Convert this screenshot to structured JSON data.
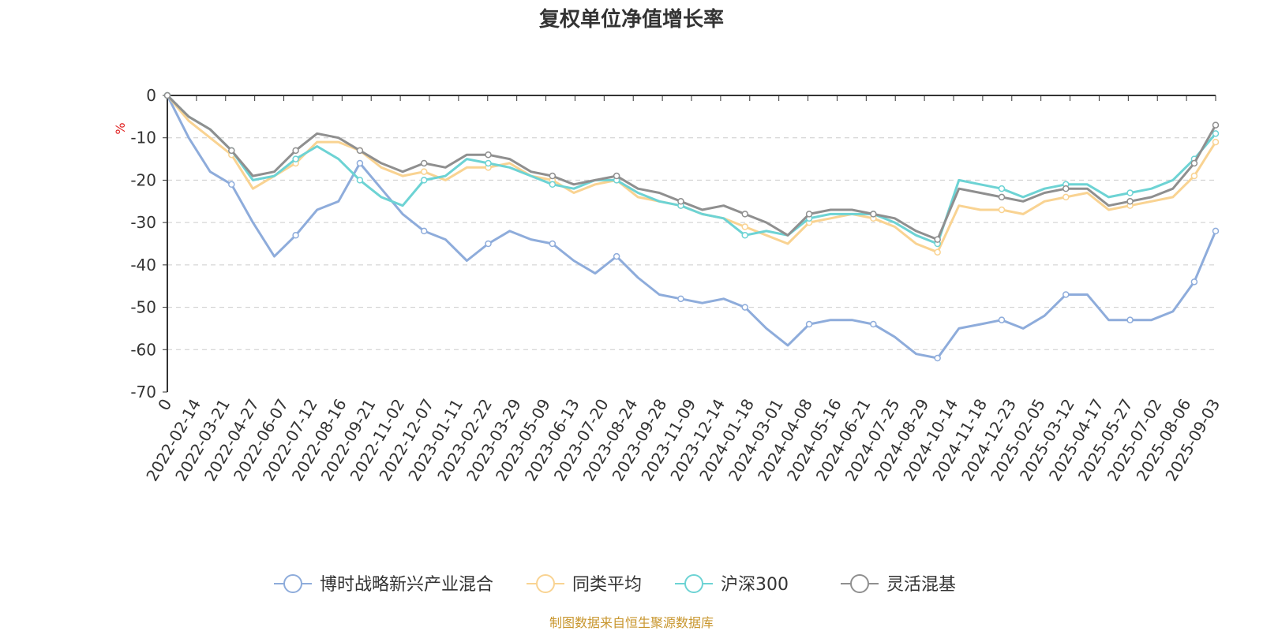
{
  "footer": "制图数据来自恒生聚源数据库",
  "chart_data": {
    "type": "line",
    "title": "复权单位净值增长率",
    "ylabel": "%",
    "ylim": [
      -70,
      0
    ],
    "y_ticks": [
      0,
      -10,
      -20,
      -30,
      -40,
      -50,
      -60,
      -70
    ],
    "grid": true,
    "legend_position": "bottom",
    "x_tick_labels": [
      "0",
      "2022-02-14",
      "2022-03-21",
      "2022-04-27",
      "2022-06-07",
      "2022-07-12",
      "2022-08-16",
      "2022-09-21",
      "2022-11-02",
      "2022-12-07",
      "2023-01-11",
      "2023-02-22",
      "2023-03-29",
      "2023-05-09",
      "2023-06-13",
      "2023-07-20",
      "2023-08-24",
      "2023-09-28",
      "2023-11-09",
      "2023-12-14",
      "2024-01-18",
      "2024-03-01",
      "2024-04-08",
      "2024-05-16",
      "2024-06-21",
      "2024-07-25",
      "2024-08-29",
      "2024-10-14",
      "2024-11-18",
      "2024-12-23",
      "2025-02-05",
      "2025-03-12",
      "2025-04-17",
      "2025-05-27",
      "2025-07-02",
      "2025-08-06",
      "2025-09-03"
    ],
    "series": [
      {
        "name": "博时战略新兴产业混合",
        "color": "#8eacdb",
        "values": [
          0,
          -10,
          -18,
          -21,
          -30,
          -38,
          -33,
          -27,
          -25,
          -16,
          -22,
          -28,
          -32,
          -34,
          -39,
          -35,
          -32,
          -34,
          -35,
          -39,
          -42,
          -38,
          -43,
          -47,
          -48,
          -49,
          -48,
          -50,
          -55,
          -59,
          -54,
          -53,
          -53,
          -54,
          -57,
          -61,
          -62,
          -55,
          -54,
          -53,
          -55,
          -52,
          -47,
          -47,
          -53,
          -53,
          -53,
          -51,
          -44,
          -32
        ]
      },
      {
        "name": "同类平均",
        "color": "#f9d392",
        "values": [
          0,
          -6,
          -10,
          -14,
          -22,
          -19,
          -16,
          -11,
          -11,
          -13,
          -17,
          -19,
          -18,
          -20,
          -17,
          -17,
          -16,
          -19,
          -20,
          -23,
          -21,
          -20,
          -24,
          -25,
          -26,
          -28,
          -29,
          -31,
          -33,
          -35,
          -30,
          -29,
          -28,
          -29,
          -31,
          -35,
          -37,
          -26,
          -27,
          -27,
          -28,
          -25,
          -24,
          -23,
          -27,
          -26,
          -25,
          -24,
          -19,
          -11
        ]
      },
      {
        "name": "沪深300",
        "color": "#6dd3d4",
        "values": [
          0,
          -5,
          -8,
          -13,
          -20,
          -19,
          -15,
          -12,
          -15,
          -20,
          -24,
          -26,
          -20,
          -19,
          -15,
          -16,
          -17,
          -19,
          -21,
          -22,
          -20,
          -20,
          -23,
          -25,
          -26,
          -28,
          -29,
          -33,
          -32,
          -33,
          -29,
          -28,
          -28,
          -28,
          -30,
          -33,
          -35,
          -20,
          -21,
          -22,
          -24,
          -22,
          -21,
          -21,
          -24,
          -23,
          -22,
          -20,
          -15,
          -9
        ]
      },
      {
        "name": "灵活混基",
        "color": "#8f8f8f",
        "values": [
          0,
          -5,
          -8,
          -13,
          -19,
          -18,
          -13,
          -9,
          -10,
          -13,
          -16,
          -18,
          -16,
          -17,
          -14,
          -14,
          -15,
          -18,
          -19,
          -21,
          -20,
          -19,
          -22,
          -23,
          -25,
          -27,
          -26,
          -28,
          -30,
          -33,
          -28,
          -27,
          -27,
          -28,
          -29,
          -32,
          -34,
          -22,
          -23,
          -24,
          -25,
          -23,
          -22,
          -22,
          -26,
          -25,
          -24,
          -22,
          -16,
          -7
        ]
      }
    ]
  }
}
